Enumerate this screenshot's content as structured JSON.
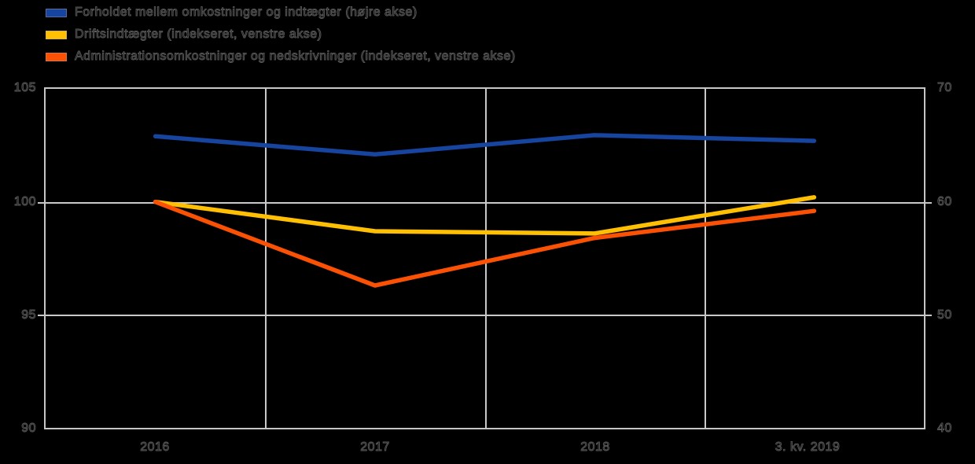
{
  "chart_data": {
    "type": "line",
    "categories": [
      "2016",
      "2017",
      "2018",
      "3. kv. 2019"
    ],
    "series": [
      {
        "id": "cost-income-ratio",
        "name": "Forholdet mellem omkostninger og indtægter (højre akse)",
        "axis": "right",
        "color": "#16449E",
        "values": [
          65.8,
          64.2,
          65.9,
          65.4
        ]
      },
      {
        "id": "operating-income",
        "name": "Driftsindtægter (indekseret, venstre akse)",
        "axis": "left",
        "color": "#FFC003",
        "values": [
          100.0,
          98.7,
          98.6,
          100.2
        ]
      },
      {
        "id": "admin-costs-impairments",
        "name": "Administrationsomkostninger og nedskrivninger (indekseret, venstre akse)",
        "axis": "left",
        "color": "#FB5104",
        "values": [
          100.0,
          96.3,
          98.4,
          99.6
        ]
      }
    ],
    "left_axis": {
      "min": 90,
      "max": 105,
      "ticks": [
        "105",
        "100",
        "95",
        "90"
      ]
    },
    "right_axis": {
      "min": 40,
      "max": 70,
      "ticks": [
        "70",
        "60",
        "50",
        "40"
      ]
    },
    "title": "",
    "xlabel": "",
    "ylabel": "",
    "grid": true,
    "legend_position": "top-left",
    "background_color": "#000000",
    "grid_color": "#C9C9C9"
  }
}
